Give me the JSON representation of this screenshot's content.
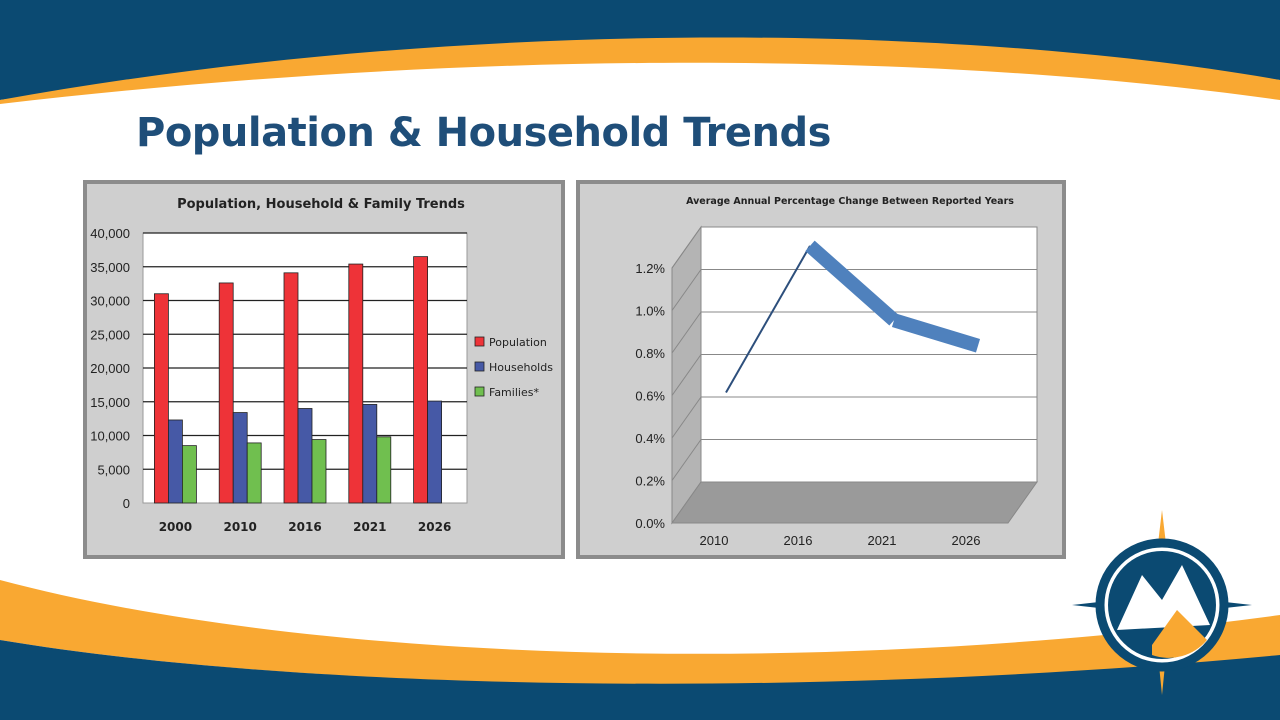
{
  "slide": {
    "title": "Population & Household Trends",
    "colors": {
      "navy": "#0b4a72",
      "orange": "#f9a832"
    }
  },
  "chart_data": [
    {
      "type": "bar",
      "title": "Population, Household & Family Trends",
      "categories": [
        "2000",
        "2010",
        "2016",
        "2021",
        "2026"
      ],
      "ylim": [
        0,
        40000
      ],
      "yticks": [
        "0",
        "5,000",
        "10,000",
        "15,000",
        "20,000",
        "25,000",
        "30,000",
        "35,000",
        "40,000"
      ],
      "grid": true,
      "legend_position": "right",
      "series": [
        {
          "name": "Population",
          "color": "#ee3338",
          "values": [
            31000,
            32600,
            34100,
            35400,
            36500
          ]
        },
        {
          "name": "Households",
          "color": "#4659a6",
          "values": [
            12300,
            13400,
            14000,
            14600,
            15100
          ]
        },
        {
          "name": "Families*",
          "color": "#70bf4f",
          "values": [
            8500,
            8900,
            9400,
            9800,
            null
          ]
        }
      ]
    },
    {
      "type": "line",
      "title": "Average Annual Percentage Change Between Reported Years",
      "categories": [
        "2010",
        "2016",
        "2021",
        "2026"
      ],
      "values": [
        0.48,
        1.17,
        0.82,
        0.7
      ],
      "ylim": [
        0,
        1.2
      ],
      "yticks": [
        "0.0%",
        "0.2%",
        "0.4%",
        "0.6%",
        "0.8%",
        "1.0%",
        "1.2%"
      ],
      "grid": true,
      "color": "#4f81bd"
    }
  ]
}
